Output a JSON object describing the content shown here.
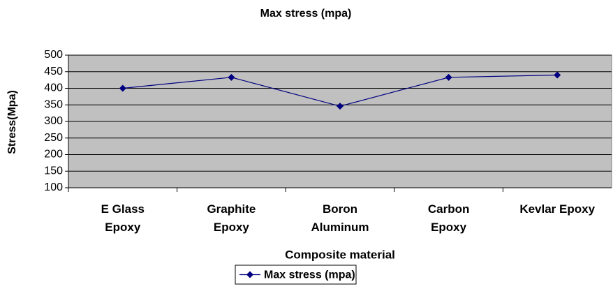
{
  "chart_data": {
    "type": "line",
    "title": "Max stress (mpa)",
    "x_label": "Composite material",
    "y_label": "Stress(Mpa)",
    "categories": [
      "E Glass Epoxy",
      "Graphite Epoxy",
      "Boron Aluminum",
      "Carbon Epoxy",
      "Kevlar Epoxy"
    ],
    "series": [
      {
        "name": "Max stress (mpa)",
        "color": "#000080",
        "values": [
          400,
          433,
          346,
          433,
          440
        ]
      }
    ],
    "ylim": [
      100,
      500
    ],
    "yticks": [
      100,
      150,
      200,
      250,
      300,
      350,
      400,
      450,
      500
    ],
    "grid": true,
    "legend": "bottom",
    "background": "#c0c0c0"
  }
}
